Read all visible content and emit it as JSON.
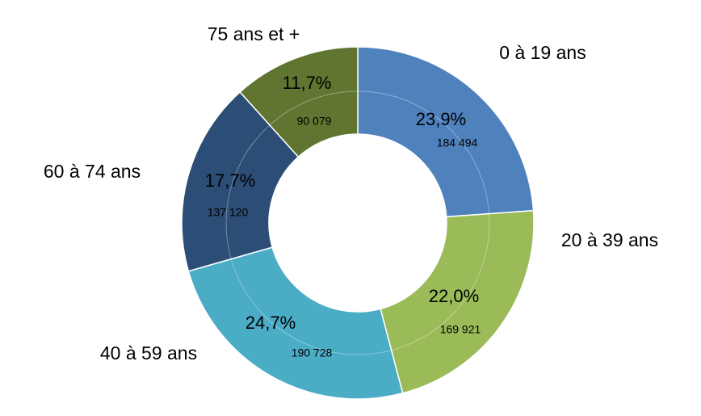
{
  "chart_data": {
    "type": "pie",
    "variant": "doughnut",
    "start_angle_deg": 0,
    "direction": "clockwise",
    "categories": [
      "0 à 19 ans",
      "20 à 39 ans",
      "40 à 59 ans",
      "60 à 74 ans",
      "75 ans et +"
    ],
    "values": [
      184494,
      169921,
      190728,
      137120,
      90079
    ],
    "value_labels": [
      "184 494",
      "169 921",
      "190 728",
      "137 120",
      "90 079"
    ],
    "percent_labels": [
      "23,9%",
      "22,0%",
      "24,7%",
      "17,7%",
      "11,7%"
    ],
    "colors": [
      "#4f81bd",
      "#9bbb59",
      "#4bacc6",
      "#2c4d75",
      "#5f7530"
    ],
    "legend": "none",
    "title": ""
  }
}
